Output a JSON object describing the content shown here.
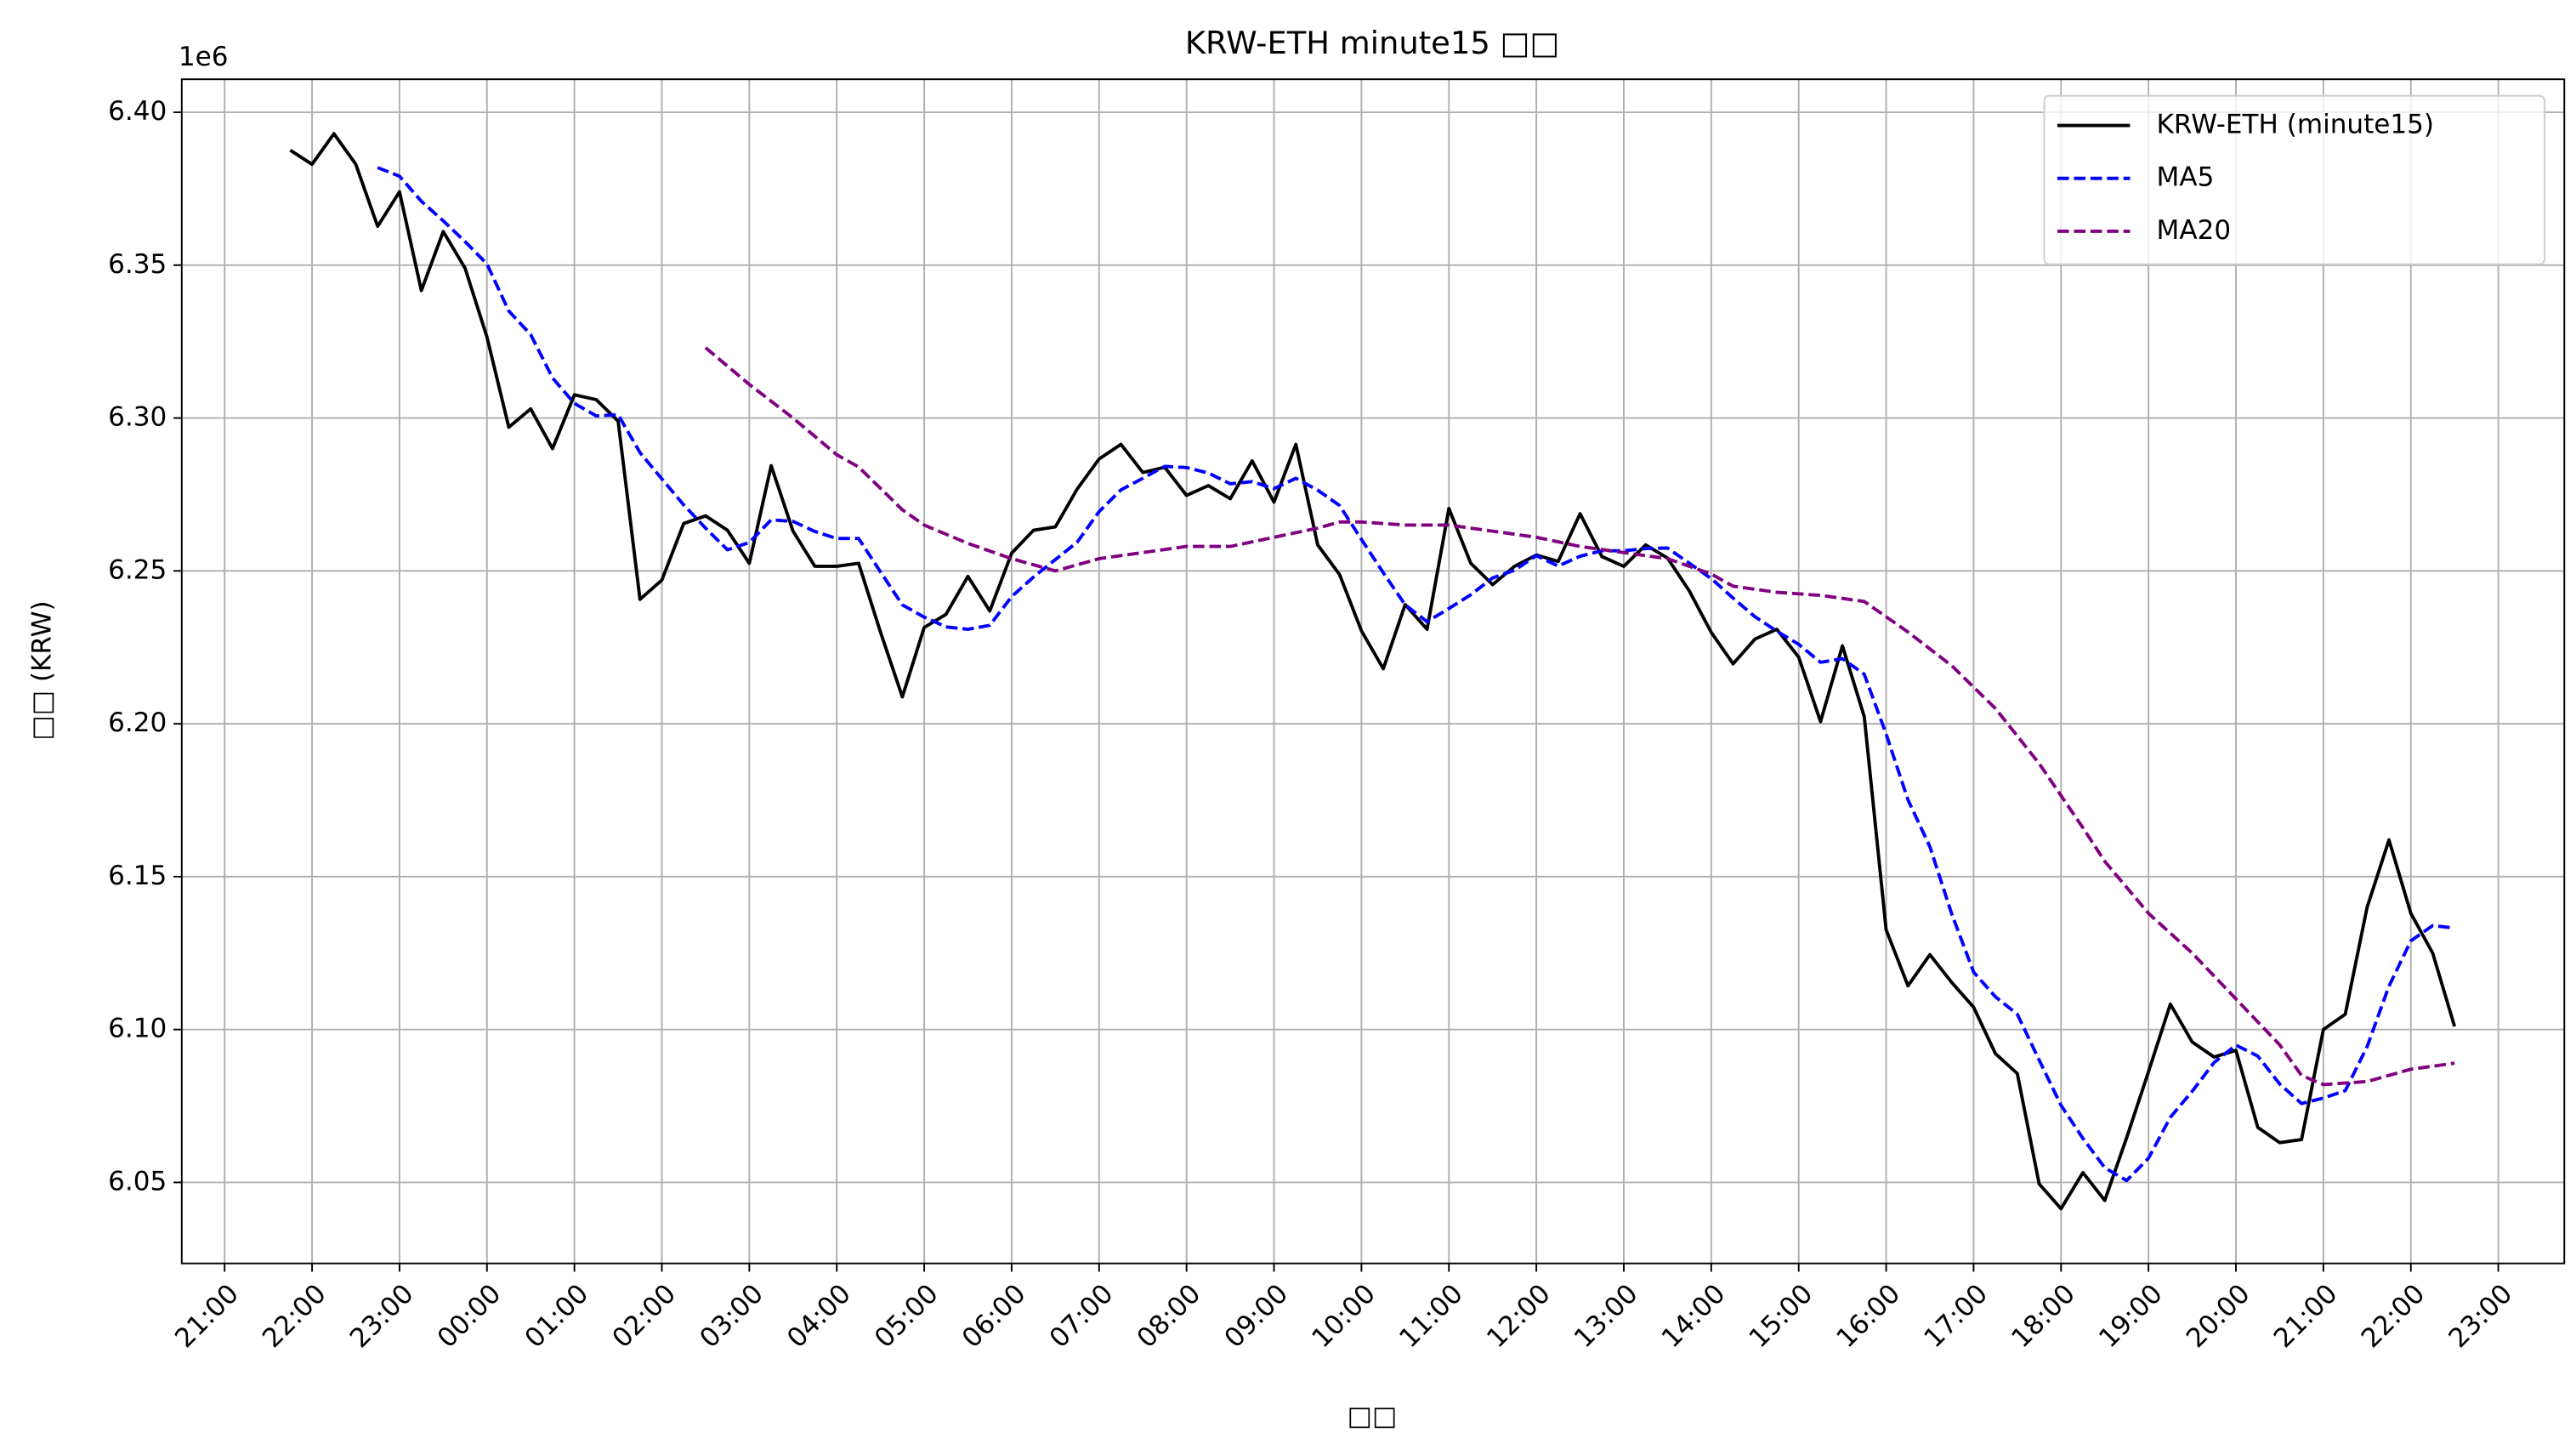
{
  "chart_data": {
    "type": "line",
    "title": "KRW-ETH minute15 □□",
    "x_label": "□□",
    "y_label": "□□ (KRW)",
    "y_offset_label": "1e6",
    "x": [
      21.75,
      22,
      22.25,
      22.5,
      22.75,
      23,
      23.25,
      23.5,
      23.75,
      24,
      24.25,
      24.5,
      24.75,
      25,
      25.25,
      25.5,
      25.75,
      26,
      26.25,
      26.5,
      26.75,
      27,
      27.25,
      27.5,
      27.75,
      28,
      28.25,
      28.5,
      28.75,
      29,
      29.25,
      29.5,
      29.75,
      30,
      30.25,
      30.5,
      30.75,
      31,
      31.25,
      31.5,
      31.75,
      32,
      32.25,
      32.5,
      32.75,
      33,
      33.25,
      33.5,
      33.75,
      34,
      34.25,
      34.5,
      34.75,
      35,
      35.25,
      35.5,
      35.75,
      36,
      36.25,
      36.5,
      36.75,
      37,
      37.25,
      37.5,
      37.75,
      38,
      38.25,
      38.5,
      38.75,
      39,
      39.25,
      39.5,
      39.75,
      40,
      40.25,
      40.5,
      40.75,
      41,
      41.25,
      41.5,
      41.75,
      42,
      42.25,
      42.5,
      42.75,
      43,
      43.25,
      43.5,
      43.75,
      44,
      44.25,
      44.5,
      44.75,
      45,
      45.25,
      45.5,
      45.75,
      46,
      46.25,
      46.5
    ],
    "series": [
      {
        "name": "KRW-ETH (minute15)",
        "color": "#000000",
        "linestyle": "solid",
        "values": [
          6387600,
          6383000,
          6393000,
          6383000,
          6362700,
          6374000,
          6341700,
          6361000,
          6349000,
          6326500,
          6297000,
          6303000,
          6290000,
          6307600,
          6306000,
          6299000,
          6240700,
          6247000,
          6265500,
          6268000,
          6263300,
          6252500,
          6284400,
          6263000,
          6251500,
          6251500,
          6252500,
          6230000,
          6208800,
          6231500,
          6235800,
          6248200,
          6236900,
          6255800,
          6263300,
          6264400,
          6276800,
          6286600,
          6291400,
          6282200,
          6283900,
          6274700,
          6277900,
          6273600,
          6286000,
          6272500,
          6291400,
          6258500,
          6248800,
          6230400,
          6218000,
          6239000,
          6230900,
          6270400,
          6252500,
          6245500,
          6251500,
          6255200,
          6253100,
          6268700,
          6254700,
          6251500,
          6258500,
          6254200,
          6243400,
          6229900,
          6219600,
          6227700,
          6230900,
          6221800,
          6200700,
          6225500,
          6202300,
          6132600,
          6114300,
          6124500,
          6115400,
          6107300,
          6092100,
          6085600,
          6049500,
          6041400,
          6053200,
          6044100,
          6064600,
          6086200,
          6108300,
          6095900,
          6091000,
          6093200,
          6068000,
          6063000,
          6064000,
          6100000,
          6105000,
          6140000,
          6162000,
          6138000,
          6125000,
          6101000
        ]
      },
      {
        "name": "MA5",
        "color": "#0000ff",
        "linestyle": "dashed",
        "values": [
          null,
          null,
          null,
          null,
          6381900,
          6379100,
          6370900,
          6364500,
          6357700,
          6350400,
          6335000,
          6327300,
          6313100,
          6304800,
          6300700,
          6301100,
          6288700,
          6280100,
          6271600,
          6264000,
          6256900,
          6259300,
          6266700,
          6266200,
          6262900,
          6260600,
          6260600,
          6249700,
          6238900,
          6234900,
          6231700,
          6230900,
          6232200,
          6241600,
          6248000,
          6253700,
          6259400,
          6269400,
          6276500,
          6280300,
          6284200,
          6283800,
          6282000,
          6278500,
          6279200,
          6276900,
          6280300,
          6276400,
          6271400,
          6260300,
          6249400,
          6238900,
          6233400,
          6237700,
          6242200,
          6247700,
          6250200,
          6255000,
          6251600,
          6254800,
          6256600,
          6256600,
          6257300,
          6257500,
          6252500,
          6247500,
          6241100,
          6235000,
          6230300,
          6226000,
          6220100,
          6221300,
          6216200,
          6196600,
          6175100,
          6159800,
          6137800,
          6118800,
          6110700,
          6105000,
          6090000,
          6075200,
          6064400,
          6054800,
          6050600,
          6057900,
          6071300,
          6079800,
          6089200,
          6094900,
          6091300,
          6082200,
          6075800,
          6077600,
          6080000,
          6094400,
          6114200,
          6129000,
          6134000,
          6133200
        ]
      },
      {
        "name": "MA20",
        "color": "#800080",
        "linestyle": "dashed",
        "values": [
          null,
          null,
          null,
          null,
          null,
          null,
          null,
          null,
          null,
          null,
          null,
          null,
          null,
          null,
          null,
          null,
          null,
          null,
          null,
          6323000,
          6317000,
          6311000,
          6305500,
          6300000,
          6294000,
          6288000,
          6284000,
          6277000,
          6270000,
          6265000,
          6262000,
          6259000,
          6256500,
          6254000,
          6252000,
          6250000,
          6252000,
          6254000,
          6255000,
          6256000,
          6257000,
          6258000,
          6258000,
          6258000,
          6259500,
          6261000,
          6262500,
          6264000,
          6266000,
          6266000,
          6265500,
          6265000,
          6265000,
          6265000,
          6264000,
          6263000,
          6262000,
          6261000,
          6259500,
          6258000,
          6257000,
          6256000,
          6255000,
          6254000,
          6251500,
          6249000,
          6245000,
          6244000,
          6243000,
          6242500,
          6242000,
          6241000,
          6240000,
          6235000,
          6230000,
          6224500,
          6219000,
          6212000,
          6205000,
          6196000,
          6187000,
          6176500,
          6166000,
          6155000,
          6146500,
          6138000,
          6131500,
          6125000,
          6117500,
          6110000,
          6102500,
          6095000,
          6085000,
          6082000,
          6082500,
          6083000,
          6085000,
          6087000,
          6088000,
          6089000
        ]
      }
    ],
    "xlim": [
      20.51,
      47.755
    ],
    "xticks": [
      {
        "value": 21,
        "label": "21:00"
      },
      {
        "value": 22,
        "label": "22:00"
      },
      {
        "value": 23,
        "label": "23:00"
      },
      {
        "value": 24,
        "label": "00:00"
      },
      {
        "value": 25,
        "label": "01:00"
      },
      {
        "value": 26,
        "label": "02:00"
      },
      {
        "value": 27,
        "label": "03:00"
      },
      {
        "value": 28,
        "label": "04:00"
      },
      {
        "value": 29,
        "label": "05:00"
      },
      {
        "value": 30,
        "label": "06:00"
      },
      {
        "value": 31,
        "label": "07:00"
      },
      {
        "value": 32,
        "label": "08:00"
      },
      {
        "value": 33,
        "label": "09:00"
      },
      {
        "value": 34,
        "label": "10:00"
      },
      {
        "value": 35,
        "label": "11:00"
      },
      {
        "value": 36,
        "label": "12:00"
      },
      {
        "value": 37,
        "label": "13:00"
      },
      {
        "value": 38,
        "label": "14:00"
      },
      {
        "value": 39,
        "label": "15:00"
      },
      {
        "value": 40,
        "label": "16:00"
      },
      {
        "value": 41,
        "label": "17:00"
      },
      {
        "value": 42,
        "label": "18:00"
      },
      {
        "value": 43,
        "label": "19:00"
      },
      {
        "value": 44,
        "label": "20:00"
      },
      {
        "value": 45,
        "label": "21:00"
      },
      {
        "value": 46,
        "label": "22:00"
      },
      {
        "value": 47,
        "label": "23:00"
      }
    ],
    "ylim": [
      6023500,
      6410800
    ],
    "yticks": [
      {
        "value": 6050000,
        "label": "6.05"
      },
      {
        "value": 6100000,
        "label": "6.10"
      },
      {
        "value": 6150000,
        "label": "6.15"
      },
      {
        "value": 6200000,
        "label": "6.20"
      },
      {
        "value": 6250000,
        "label": "6.25"
      },
      {
        "value": 6300000,
        "label": "6.30"
      },
      {
        "value": 6350000,
        "label": "6.35"
      },
      {
        "value": 6400000,
        "label": "6.40"
      }
    ],
    "grid": true,
    "legend": "upper right"
  }
}
